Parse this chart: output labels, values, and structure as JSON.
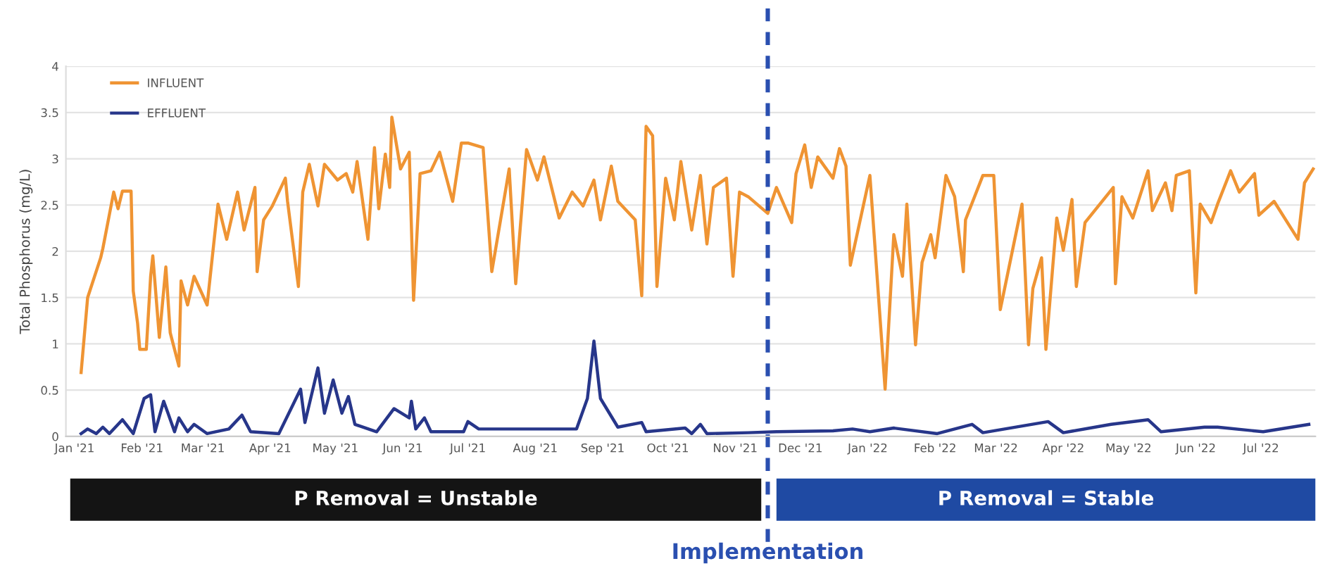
{
  "chart_data": {
    "type": "line",
    "ylabel": "Total Phosphorus (mg/L)",
    "xlim": [
      "2020-12-28",
      "2022-07-26"
    ],
    "xticks": [
      {
        "value": "2021-01-01",
        "label": "Jan '21"
      },
      {
        "value": "2021-02-01",
        "label": "Feb '21"
      },
      {
        "value": "2021-03-01",
        "label": "Mar '21"
      },
      {
        "value": "2021-04-01",
        "label": "Apr '21"
      },
      {
        "value": "2021-05-01",
        "label": "May '21"
      },
      {
        "value": "2021-06-01",
        "label": "Jun '21"
      },
      {
        "value": "2021-07-01",
        "label": "Jul '21"
      },
      {
        "value": "2021-08-01",
        "label": "Aug '21"
      },
      {
        "value": "2021-09-01",
        "label": "Sep '21"
      },
      {
        "value": "2021-10-01",
        "label": "Oct '21"
      },
      {
        "value": "2021-11-01",
        "label": "Nov '21"
      },
      {
        "value": "2021-12-01",
        "label": "Dec '21"
      },
      {
        "value": "2022-01-01",
        "label": "Jan '22"
      },
      {
        "value": "2022-02-01",
        "label": "Feb '22"
      },
      {
        "value": "2022-03-01",
        "label": "Mar '22"
      },
      {
        "value": "2022-04-01",
        "label": "Apr '22"
      },
      {
        "value": "2022-05-01",
        "label": "May '22"
      },
      {
        "value": "2022-06-01",
        "label": "Jun '22"
      },
      {
        "value": "2022-07-01",
        "label": "Jul '22"
      }
    ],
    "ylim": [
      0,
      4
    ],
    "yticks": [
      0,
      0.5,
      1,
      1.5,
      2,
      2.5,
      3,
      3.5,
      4
    ],
    "grid": "y",
    "legend": "top left",
    "series": [
      {
        "name": "INFLUENT",
        "color": "#ef9433",
        "x": [
          "2021-01-04",
          "2021-01-07",
          "2021-01-13",
          "2021-01-14",
          "2021-01-19",
          "2021-01-21",
          "2021-01-23",
          "2021-01-27",
          "2021-01-28",
          "2021-01-30",
          "2021-01-31",
          "2021-02-03",
          "2021-02-05",
          "2021-02-06",
          "2021-02-09",
          "2021-02-12",
          "2021-02-14",
          "2021-02-18",
          "2021-02-19",
          "2021-02-22",
          "2021-02-25",
          "2021-03-03",
          "2021-03-08",
          "2021-03-12",
          "2021-03-17",
          "2021-03-20",
          "2021-03-25",
          "2021-03-26",
          "2021-03-29",
          "2021-04-02",
          "2021-04-04",
          "2021-04-08",
          "2021-04-09",
          "2021-04-14",
          "2021-04-16",
          "2021-04-19",
          "2021-04-23",
          "2021-04-26",
          "2021-05-02",
          "2021-05-06",
          "2021-05-09",
          "2021-05-11",
          "2021-05-16",
          "2021-05-19",
          "2021-05-21",
          "2021-05-24",
          "2021-05-26",
          "2021-05-27",
          "2021-05-31",
          "2021-06-04",
          "2021-06-06",
          "2021-06-09",
          "2021-06-14",
          "2021-06-18",
          "2021-06-24",
          "2021-06-28",
          "2021-07-01",
          "2021-07-08",
          "2021-07-12",
          "2021-07-20",
          "2021-07-23",
          "2021-07-28",
          "2021-08-02",
          "2021-08-05",
          "2021-08-12",
          "2021-08-18",
          "2021-08-23",
          "2021-08-28",
          "2021-08-31",
          "2021-09-05",
          "2021-09-08",
          "2021-09-16",
          "2021-09-19",
          "2021-09-21",
          "2021-09-24",
          "2021-09-26",
          "2021-09-30",
          "2021-10-04",
          "2021-10-07",
          "2021-10-12",
          "2021-10-16",
          "2021-10-19",
          "2021-10-22",
          "2021-10-28",
          "2021-10-31",
          "2021-11-03",
          "2021-11-07",
          "2021-11-16",
          "2021-11-20",
          "2021-11-27",
          "2021-11-29",
          "2021-12-03",
          "2021-12-06",
          "2021-12-09",
          "2021-12-16",
          "2021-12-19",
          "2021-12-22",
          "2021-12-24",
          "2022-01-02",
          "2022-01-09",
          "2022-01-13",
          "2022-01-17",
          "2022-01-19",
          "2022-01-23",
          "2022-01-26",
          "2022-01-30",
          "2022-02-01",
          "2022-02-06",
          "2022-02-10",
          "2022-02-14",
          "2022-02-15",
          "2022-02-23",
          "2022-02-28",
          "2022-03-03",
          "2022-03-13",
          "2022-03-16",
          "2022-03-18",
          "2022-03-22",
          "2022-03-24",
          "2022-03-29",
          "2022-04-01",
          "2022-04-05",
          "2022-04-07",
          "2022-04-11",
          "2022-04-24",
          "2022-04-25",
          "2022-04-28",
          "2022-05-03",
          "2022-05-10",
          "2022-05-12",
          "2022-05-18",
          "2022-05-21",
          "2022-05-23",
          "2022-05-29",
          "2022-06-01",
          "2022-06-03",
          "2022-06-08",
          "2022-06-11",
          "2022-06-17",
          "2022-06-21",
          "2022-06-28",
          "2022-06-30",
          "2022-07-07",
          "2022-07-18",
          "2022-07-21",
          "2022-07-25"
        ],
        "values": [
          0.69,
          1.5,
          1.93,
          2.03,
          2.64,
          2.46,
          2.65,
          2.65,
          1.57,
          1.22,
          0.94,
          0.94,
          1.73,
          1.95,
          1.07,
          1.83,
          1.12,
          0.76,
          1.68,
          1.42,
          1.73,
          1.42,
          2.51,
          2.13,
          2.64,
          2.23,
          2.69,
          1.78,
          2.34,
          2.49,
          2.59,
          2.79,
          2.54,
          1.62,
          2.64,
          2.94,
          2.49,
          2.94,
          2.77,
          2.84,
          2.64,
          2.97,
          2.13,
          3.12,
          2.46,
          3.05,
          2.69,
          3.45,
          2.89,
          3.07,
          1.47,
          2.84,
          2.87,
          3.07,
          2.54,
          3.17,
          3.17,
          3.12,
          1.78,
          2.89,
          1.65,
          3.1,
          2.77,
          3.02,
          2.36,
          2.64,
          2.49,
          2.77,
          2.34,
          2.92,
          2.54,
          2.34,
          1.52,
          3.35,
          3.25,
          1.62,
          2.79,
          2.34,
          2.97,
          2.23,
          2.82,
          2.08,
          2.69,
          2.79,
          1.73,
          2.64,
          2.59,
          2.41,
          2.69,
          2.31,
          2.84,
          3.15,
          2.69,
          3.02,
          2.79,
          3.11,
          2.92,
          1.85,
          2.82,
          0.51,
          2.18,
          1.73,
          2.51,
          0.99,
          1.88,
          2.18,
          1.93,
          2.82,
          2.59,
          1.78,
          2.34,
          2.82,
          2.82,
          1.37,
          2.51,
          0.99,
          1.6,
          1.93,
          0.94,
          2.36,
          2.01,
          2.56,
          1.62,
          2.31,
          2.69,
          1.65,
          2.59,
          2.36,
          2.87,
          2.44,
          2.74,
          2.44,
          2.82,
          2.87,
          1.55,
          2.51,
          2.31,
          2.51,
          2.87,
          2.64,
          2.84,
          2.39,
          2.54,
          2.13,
          2.74,
          2.89
        ]
      },
      {
        "name": "EFFLUENT",
        "color": "#27368a",
        "x": [
          "2021-01-04",
          "2021-01-07",
          "2021-01-11",
          "2021-01-14",
          "2021-01-17",
          "2021-01-23",
          "2021-01-28",
          "2021-02-02",
          "2021-02-05",
          "2021-02-07",
          "2021-02-11",
          "2021-02-13",
          "2021-02-16",
          "2021-02-18",
          "2021-02-22",
          "2021-02-25",
          "2021-03-03",
          "2021-03-13",
          "2021-03-19",
          "2021-03-23",
          "2021-04-05",
          "2021-04-15",
          "2021-04-17",
          "2021-04-23",
          "2021-04-26",
          "2021-04-30",
          "2021-05-04",
          "2021-05-07",
          "2021-05-10",
          "2021-05-20",
          "2021-05-28",
          "2021-06-04",
          "2021-06-05",
          "2021-06-07",
          "2021-06-11",
          "2021-06-14",
          "2021-06-16",
          "2021-06-29",
          "2021-07-01",
          "2021-07-06",
          "2021-08-05",
          "2021-08-20",
          "2021-08-25",
          "2021-08-28",
          "2021-08-31",
          "2021-09-08",
          "2021-09-19",
          "2021-09-21",
          "2021-10-09",
          "2021-10-12",
          "2021-10-16",
          "2021-10-19",
          "2021-11-07",
          "2021-11-20",
          "2021-12-16",
          "2021-12-25",
          "2022-01-02",
          "2022-01-13",
          "2022-02-02",
          "2022-02-18",
          "2022-02-23",
          "2022-03-25",
          "2022-04-01",
          "2022-04-23",
          "2022-05-10",
          "2022-05-16",
          "2022-06-05",
          "2022-06-11",
          "2022-07-02",
          "2022-07-23"
        ],
        "values": [
          0.03,
          0.08,
          0.03,
          0.1,
          0.03,
          0.18,
          0.03,
          0.41,
          0.45,
          0.05,
          0.38,
          0.25,
          0.05,
          0.2,
          0.05,
          0.13,
          0.03,
          0.08,
          0.23,
          0.05,
          0.03,
          0.51,
          0.15,
          0.74,
          0.25,
          0.61,
          0.25,
          0.43,
          0.13,
          0.05,
          0.3,
          0.2,
          0.38,
          0.08,
          0.2,
          0.05,
          0.05,
          0.05,
          0.16,
          0.08,
          0.08,
          0.08,
          0.41,
          1.03,
          0.41,
          0.1,
          0.15,
          0.05,
          0.09,
          0.03,
          0.13,
          0.03,
          0.04,
          0.05,
          0.06,
          0.08,
          0.05,
          0.09,
          0.03,
          0.13,
          0.04,
          0.16,
          0.04,
          0.13,
          0.18,
          0.05,
          0.1,
          0.1,
          0.05,
          0.13
        ]
      }
    ],
    "ref_lines": [
      {
        "axis": "x",
        "value": "2021-11-16",
        "label": "Implementation",
        "color": "#2a4fb0",
        "line_style": "dashed"
      }
    ],
    "annotations": [
      "P Removal = Unstable",
      "P Removal = Stable"
    ]
  }
}
